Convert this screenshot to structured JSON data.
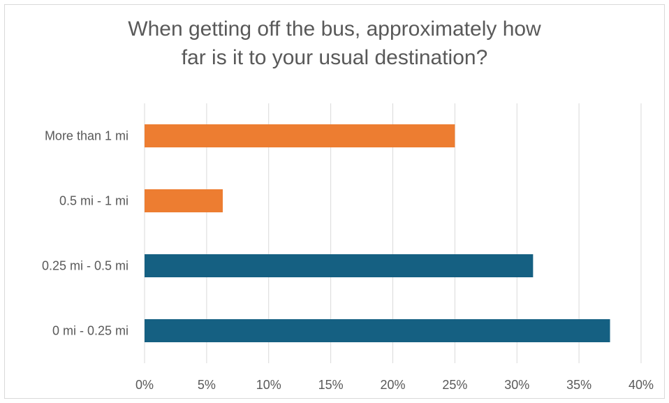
{
  "chart_data": {
    "type": "bar",
    "orientation": "horizontal",
    "title_lines": [
      "When getting off the bus, approximately how",
      "far is it to your usual destination?"
    ],
    "categories": [
      "More than 1 mi",
      "0.5 mi - 1 mi",
      "0.25 mi - 0.5 mi",
      "0 mi - 0.25 mi"
    ],
    "values": [
      25.0,
      6.3,
      31.3,
      37.5
    ],
    "bar_colors": [
      "#ED7D31",
      "#ED7D31",
      "#156082",
      "#156082"
    ],
    "xlim": [
      0,
      40
    ],
    "xticks": [
      0,
      5,
      10,
      15,
      20,
      25,
      30,
      35,
      40
    ],
    "xtick_labels": [
      "0%",
      "5%",
      "10%",
      "15%",
      "20%",
      "25%",
      "30%",
      "35%",
      "40%"
    ],
    "grid": "vertical",
    "legend": "none",
    "xlabel": "",
    "ylabel": ""
  }
}
